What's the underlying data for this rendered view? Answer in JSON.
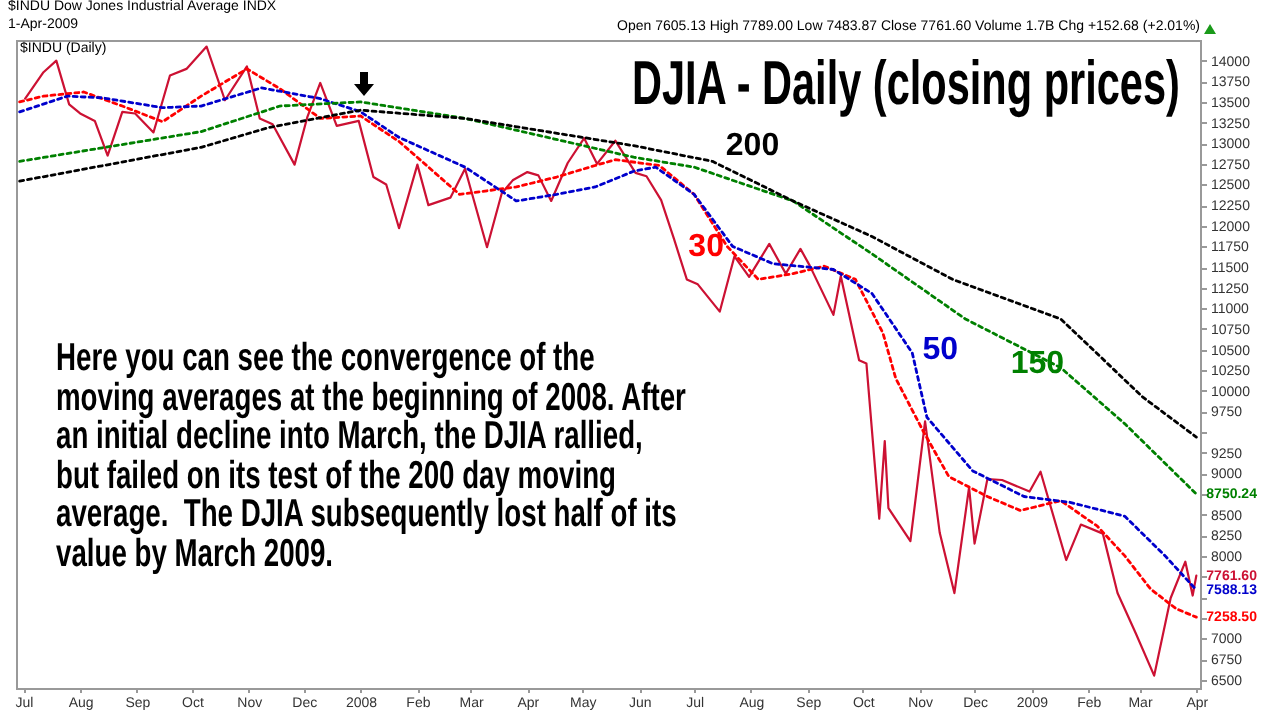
{
  "chart_data": {
    "type": "line",
    "title": "DJIA - Daily (closing prices)",
    "annotations": [
      "$INDU Dow Jones Industrial Average INDX",
      "1-Apr-2009",
      "Open 7605.13 High 7789.00 Low 7483.87 Close 7761.60 Volume 1.7B Chg +152.68 (+2.01%)",
      "$INDU (Daily)",
      "Here you can see the convergence of the moving averages at the beginning of 2008. After an initial decline into March, the DJIA rallied, but failed on its test of the 200 day moving average.  The DJIA subsequently lost half of its value by March 2009."
    ],
    "series": [
      {
        "color": "#cc1133",
        "line_style": "solid",
        "x": [
          "2007-07-02",
          "2007-07-12",
          "2007-07-19",
          "2007-07-26",
          "2007-08-01",
          "2007-08-09",
          "2007-08-16",
          "2007-08-24",
          "2007-08-31",
          "2007-09-10",
          "2007-09-19",
          "2007-09-28",
          "2007-10-09",
          "2007-10-19",
          "2007-10-31",
          "2007-11-07",
          "2007-11-14",
          "2007-11-26",
          "2007-12-03",
          "2007-12-10",
          "2007-12-19",
          "2007-12-31",
          "2008-01-08",
          "2008-01-15",
          "2008-01-22",
          "2008-02-01",
          "2008-02-07",
          "2008-02-19",
          "2008-02-27",
          "2008-03-10",
          "2008-03-18",
          "2008-03-24",
          "2008-04-01",
          "2008-04-07",
          "2008-04-14",
          "2008-04-23",
          "2008-05-02",
          "2008-05-09",
          "2008-05-19",
          "2008-05-30",
          "2008-06-05",
          "2008-06-13",
          "2008-06-20",
          "2008-06-27",
          "2008-07-03",
          "2008-07-15",
          "2008-07-23",
          "2008-07-31",
          "2008-08-11",
          "2008-08-20",
          "2008-08-28",
          "2008-09-02",
          "2008-09-15",
          "2008-09-19",
          "2008-09-29",
          "2008-10-03",
          "2008-10-10",
          "2008-10-13",
          "2008-10-15",
          "2008-10-27",
          "2008-11-04",
          "2008-11-12",
          "2008-11-20",
          "2008-11-28",
          "2008-12-01",
          "2008-12-08",
          "2008-12-16",
          "2008-12-31",
          "2009-01-06",
          "2009-01-20",
          "2009-01-28",
          "2009-02-09",
          "2009-02-17",
          "2009-02-27",
          "2009-03-09",
          "2009-03-18",
          "2009-03-26",
          "2009-03-30",
          "2009-04-01"
        ],
        "values": [
          13540,
          13860,
          14000,
          13470,
          13360,
          13270,
          12850,
          13380,
          13360,
          13130,
          13820,
          13900,
          14170,
          13520,
          13930,
          13300,
          13230,
          12740,
          13320,
          13730,
          13210,
          13270,
          12590,
          12500,
          11970,
          12740,
          12250,
          12340,
          12690,
          11740,
          12390,
          12550,
          12650,
          12610,
          12300,
          12760,
          13060,
          12750,
          13030,
          12640,
          12600,
          12310,
          11840,
          11350,
          11290,
          10960,
          11630,
          11380,
          11780,
          11420,
          11720,
          11520,
          10920,
          11390,
          10370,
          10330,
          8450,
          9390,
          8580,
          8180,
          9630,
          8280,
          7550,
          8830,
          8150,
          8930,
          8920,
          8780,
          9020,
          7950,
          8380,
          8270,
          7550,
          7060,
          6550,
          7490,
          7930,
          7520,
          7761.6
        ],
        "value_labels": [
          null,
          null,
          null,
          null,
          null,
          null,
          null,
          null,
          null,
          null,
          null,
          null,
          null,
          null,
          null,
          null,
          null,
          null,
          null,
          null,
          null,
          null,
          null,
          null,
          null,
          null,
          null,
          null,
          null,
          null,
          null,
          null,
          null,
          null,
          null,
          null,
          null,
          null,
          null,
          null,
          null,
          null,
          null,
          null,
          null,
          null,
          null,
          null,
          null,
          null,
          null,
          null,
          null,
          null,
          null,
          null,
          null,
          null,
          null,
          null,
          null,
          null,
          null,
          null,
          null,
          null,
          null,
          null,
          null,
          null,
          null,
          null,
          null,
          null,
          null,
          null,
          null,
          null,
          "7761.60"
        ]
      },
      {
        "name": "30",
        "color": "#ff0000",
        "line_style": "dotted",
        "x": [
          "2007-06-29",
          "2007-07-12",
          "2007-08-03",
          "2007-08-24",
          "2007-09-15",
          "2007-10-06",
          "2007-10-31",
          "2007-11-18",
          "2007-12-10",
          "2008-01-01",
          "2008-01-22",
          "2008-02-06",
          "2008-02-24",
          "2008-03-26",
          "2008-04-17",
          "2008-05-08",
          "2008-05-19",
          "2008-06-12",
          "2008-07-01",
          "2008-07-19",
          "2008-08-05",
          "2008-08-24",
          "2008-09-10",
          "2008-09-27",
          "2008-10-12",
          "2008-10-19",
          "2008-11-03",
          "2008-11-17",
          "2008-12-08",
          "2008-12-26",
          "2009-01-17",
          "2009-02-06",
          "2009-02-21",
          "2009-03-07",
          "2009-03-21",
          "2009-04-01"
        ],
        "values": [
          13500,
          13570,
          13620,
          13450,
          13260,
          13570,
          13900,
          13660,
          13300,
          13330,
          13020,
          12730,
          12380,
          12470,
          12590,
          12730,
          12800,
          12730,
          12380,
          11750,
          11350,
          11420,
          11510,
          11350,
          10700,
          10150,
          9510,
          8960,
          8720,
          8550,
          8670,
          8360,
          8000,
          7600,
          7360,
          7258.5
        ],
        "value_labels": [
          null,
          null,
          null,
          null,
          null,
          null,
          null,
          null,
          null,
          null,
          null,
          null,
          null,
          null,
          null,
          null,
          null,
          null,
          null,
          null,
          null,
          null,
          null,
          null,
          null,
          null,
          null,
          null,
          null,
          null,
          null,
          null,
          null,
          null,
          null,
          "7258.50"
        ]
      },
      {
        "name": "50",
        "color": "#0000cc",
        "line_style": "dotted",
        "x": [
          "2007-06-29",
          "2007-07-25",
          "2007-08-13",
          "2007-09-15",
          "2007-10-06",
          "2007-11-08",
          "2007-12-10",
          "2008-01-01",
          "2008-01-22",
          "2008-02-27",
          "2008-03-26",
          "2008-04-17",
          "2008-05-08",
          "2008-05-29",
          "2008-06-10",
          "2008-07-01",
          "2008-07-22",
          "2008-08-13",
          "2008-09-15",
          "2008-10-06",
          "2008-10-28",
          "2008-11-05",
          "2008-11-30",
          "2008-12-28",
          "2009-01-22",
          "2009-02-21",
          "2009-03-15",
          "2009-04-01"
        ],
        "values": [
          13380,
          13570,
          13550,
          13430,
          13450,
          13670,
          13540,
          13380,
          13070,
          12710,
          12300,
          12380,
          12470,
          12660,
          12710,
          12380,
          11750,
          11540,
          11470,
          11180,
          10460,
          9680,
          9030,
          8720,
          8650,
          8480,
          8000,
          7588.13
        ],
        "value_labels": [
          null,
          null,
          null,
          null,
          null,
          null,
          null,
          null,
          null,
          null,
          null,
          null,
          null,
          null,
          null,
          null,
          null,
          null,
          null,
          null,
          null,
          null,
          null,
          null,
          null,
          null,
          null,
          "7588.13"
        ]
      },
      {
        "name": "150",
        "color": "#008000",
        "line_style": "dotted",
        "x": [
          "2007-06-29",
          "2007-10-06",
          "2007-11-18",
          "2008-01-01",
          "2008-02-27",
          "2008-05-29",
          "2008-07-01",
          "2008-08-24",
          "2008-10-06",
          "2008-11-26",
          "2009-01-17",
          "2009-02-21",
          "2009-04-01"
        ],
        "values": [
          12780,
          13140,
          13450,
          13500,
          13300,
          12830,
          12710,
          12300,
          11660,
          10870,
          10280,
          9600,
          8750.24
        ],
        "value_labels": [
          null,
          null,
          null,
          null,
          null,
          null,
          null,
          null,
          null,
          null,
          null,
          null,
          "8750.24"
        ]
      },
      {
        "name": "200",
        "color": "#000000",
        "line_style": "dotted",
        "x": [
          "2007-06-29",
          "2007-10-06",
          "2007-11-12",
          "2008-01-01",
          "2008-02-27",
          "2008-05-29",
          "2008-07-11",
          "2008-08-24",
          "2008-10-06",
          "2008-11-19",
          "2009-01-17",
          "2009-03-03",
          "2009-04-01"
        ],
        "values": [
          12540,
          12950,
          13190,
          13400,
          13300,
          12970,
          12780,
          12300,
          11870,
          11350,
          10870,
          9920,
          9440
        ]
      }
    ],
    "xlim": [
      "2007-06-27",
      "2009-04-03"
    ],
    "xticks": [
      {
        "value": "2007-07-01",
        "label": "Jul"
      },
      {
        "value": "2007-08-01",
        "label": "Aug"
      },
      {
        "value": "2007-09-01",
        "label": "Sep"
      },
      {
        "value": "2007-10-01",
        "label": "Oct"
      },
      {
        "value": "2007-11-01",
        "label": "Nov"
      },
      {
        "value": "2007-12-01",
        "label": "Dec"
      },
      {
        "value": "2008-01-01",
        "label": "2008"
      },
      {
        "value": "2008-02-01",
        "label": "Feb"
      },
      {
        "value": "2008-03-01",
        "label": "Mar"
      },
      {
        "value": "2008-04-01",
        "label": "Apr"
      },
      {
        "value": "2008-05-01",
        "label": "May"
      },
      {
        "value": "2008-06-01",
        "label": "Jun"
      },
      {
        "value": "2008-07-01",
        "label": "Jul"
      },
      {
        "value": "2008-08-01",
        "label": "Aug"
      },
      {
        "value": "2008-09-01",
        "label": "Sep"
      },
      {
        "value": "2008-10-01",
        "label": "Oct"
      },
      {
        "value": "2008-11-01",
        "label": "Nov"
      },
      {
        "value": "2008-12-01",
        "label": "Dec"
      },
      {
        "value": "2009-01-01",
        "label": "2009"
      },
      {
        "value": "2009-02-01",
        "label": "Feb"
      },
      {
        "value": "2009-03-01",
        "label": "Mar"
      },
      {
        "value": "2009-04-01",
        "label": "Apr"
      }
    ],
    "ylim": [
      6400,
      14250
    ],
    "yticks": [
      6500,
      6750,
      7000,
      {
        "value": 7250,
        "label": null
      },
      {
        "value": 7500,
        "label": null
      },
      {
        "value": 7750,
        "label": null
      },
      8000,
      8250,
      8500,
      {
        "value": 8750,
        "label": null
      },
      9000,
      9250,
      {
        "value": 9500,
        "label": null
      },
      9750,
      10000,
      10250,
      10500,
      10750,
      11000,
      11250,
      11500,
      11750,
      12000,
      12250,
      12500,
      12750,
      13000,
      13250,
      13500,
      13750,
      14000
    ]
  }
}
